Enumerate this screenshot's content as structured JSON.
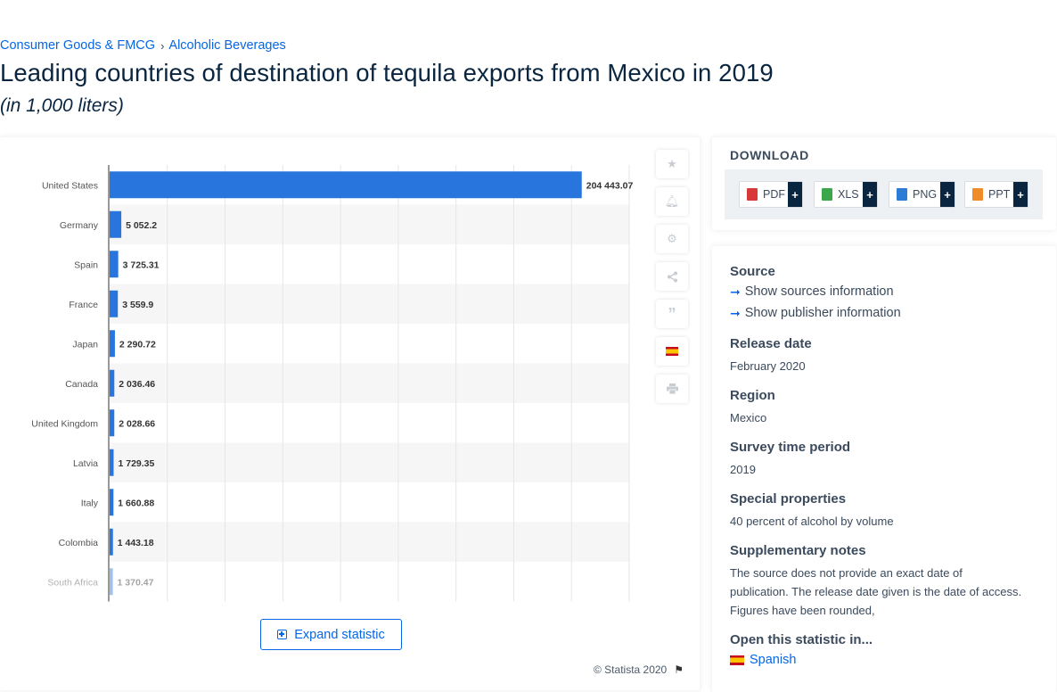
{
  "breadcrumb": {
    "items": [
      "Consumer Goods & FMCG",
      "Alcoholic Beverages"
    ],
    "separator": "›"
  },
  "page": {
    "title": "Leading countries of destination of tequila exports from Mexico in 2019",
    "subtitle": "(in 1,000 liters)"
  },
  "chart_data": {
    "type": "bar",
    "orientation": "horizontal",
    "categories": [
      "United States",
      "Germany",
      "Spain",
      "France",
      "Japan",
      "Canada",
      "United Kingdom",
      "Latvia",
      "Italy",
      "Colombia",
      "South Africa"
    ],
    "values": [
      204443.07,
      5052.2,
      3725.31,
      3559.9,
      2290.72,
      2036.46,
      2028.66,
      1729.35,
      1660.88,
      1443.18,
      1370.47
    ],
    "value_labels": [
      "204 443.07",
      "5 052.2",
      "3 725.31",
      "3 559.9",
      "2 290.72",
      "2 036.46",
      "2 028.66",
      "1 729.35",
      "1 660.88",
      "1 443.18",
      "1 370.47"
    ],
    "xlim": [
      0,
      225000
    ],
    "grid": true,
    "bar_color": "#2876dd"
  },
  "chart_ui": {
    "expand_label": "Expand statistic",
    "copyright": "© Statista 2020"
  },
  "toolbar": {
    "icons": [
      "star-icon",
      "bell-icon",
      "gear-icon",
      "share-icon",
      "quote-icon",
      "spanish-flag-icon",
      "print-icon"
    ]
  },
  "download": {
    "title": "DOWNLOAD",
    "buttons": [
      {
        "label": "PDF",
        "plus": "+",
        "color": "#d93838"
      },
      {
        "label": "XLS",
        "plus": "+",
        "color": "#3aa84a"
      },
      {
        "label": "PNG",
        "plus": "+",
        "color": "#2c7bd6"
      },
      {
        "label": "PPT",
        "plus": "+",
        "color": "#f08c28"
      }
    ]
  },
  "meta": {
    "source_heading": "Source",
    "show_sources": "Show sources information",
    "show_publisher": "Show publisher information",
    "release_heading": "Release date",
    "release_value": "February 2020",
    "region_heading": "Region",
    "region_value": "Mexico",
    "survey_heading": "Survey time period",
    "survey_value": "2019",
    "special_heading": "Special properties",
    "special_value": "40 percent of alcohol by volume",
    "supp_heading": "Supplementary notes",
    "supp_value_1": "The source does not provide an exact date of publication. The release date given is the date of access.",
    "supp_value_2": "Figures have been rounded,",
    "open_heading": "Open this statistic in...",
    "open_spanish": "Spanish"
  }
}
